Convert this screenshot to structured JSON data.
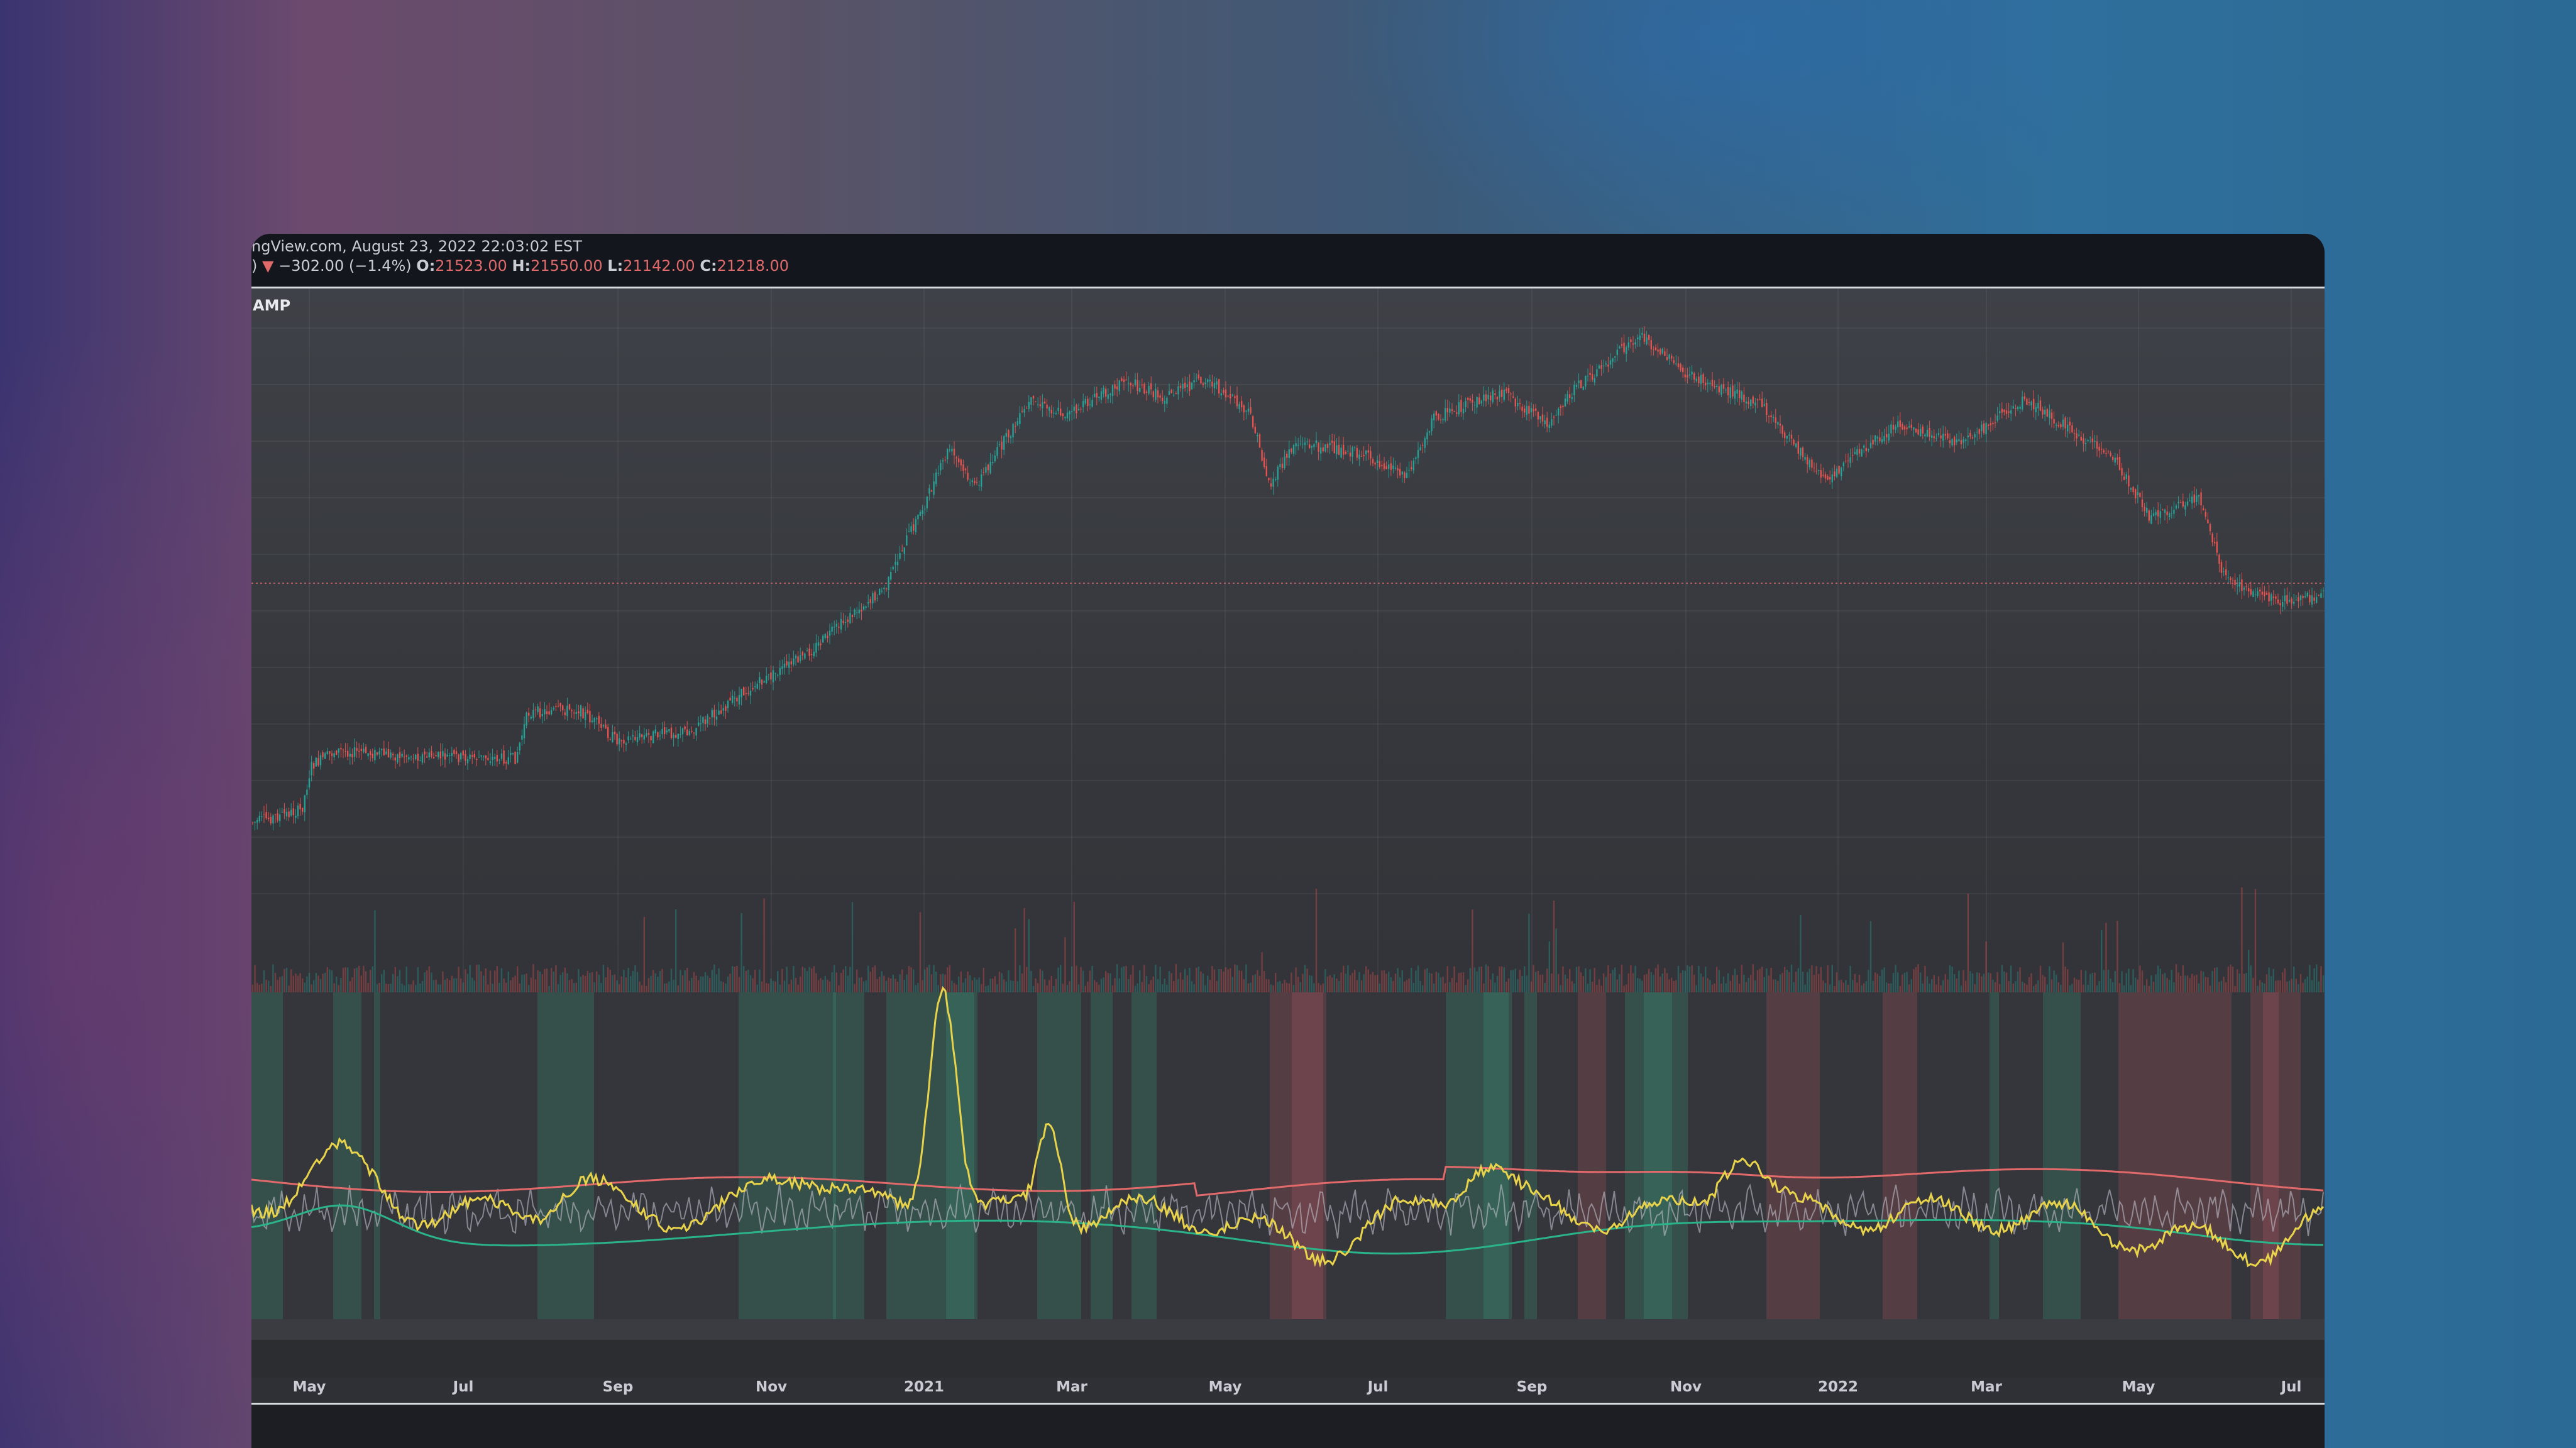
{
  "header": {
    "source_line": "ngView.com, August 23, 2022 22:03:02 EST",
    "change": "−302.00 (−1.4%)",
    "open_label": "O:",
    "open": "21523.00",
    "high_label": "H:",
    "high": "21550.00",
    "low_label": "L:",
    "low": "21142.00",
    "close_label": "C:",
    "close": "21218.00",
    "down_glyph": "▼",
    "prefix": ")"
  },
  "indicator_label": "AMP",
  "x_axis": {
    "ticks": [
      "May",
      "Jul",
      "Sep",
      "Nov",
      "2021",
      "Mar",
      "May",
      "Jul",
      "Sep",
      "Nov",
      "2022",
      "Mar",
      "May",
      "Jul"
    ]
  },
  "colors": {
    "up": "#26a69a",
    "down": "#ef5350",
    "yellow_line": "#e8d34a",
    "red_line": "#e26a6a",
    "green_line": "#2bb38a"
  }
}
